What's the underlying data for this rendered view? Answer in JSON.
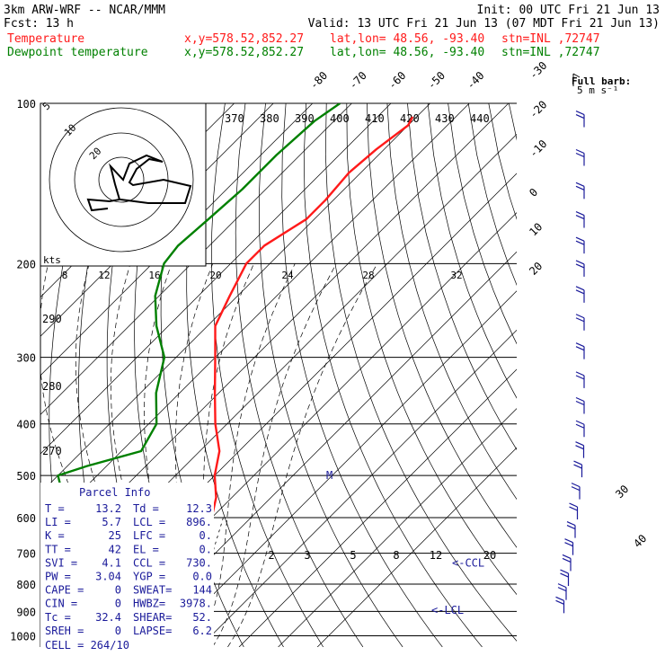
{
  "header": {
    "model": "3km ARW-WRF -- NCAR/MMM",
    "init": "Init: 00 UTC Fri 21 Jun 13",
    "fcst_label": "Fcst:",
    "fcst_value": "13 h",
    "valid": "Valid: 13 UTC Fri 21 Jun 13 (07 MDT Fri 21 Jun 13)",
    "temp_line": "Temperature",
    "dew_line": "Dewpoint temperature",
    "xy": "x,y=578.52,852.27",
    "latlon": "lat,lon= 48.56, -93.40",
    "stn": "stn=INL ,72747"
  },
  "barb_legend": {
    "title": "Full barb:",
    "value": "5 m s⁻¹"
  },
  "parcel_info": {
    "title": "Parcel Info",
    "rows": [
      [
        "T  =",
        "13.2",
        "Td =",
        "12.3"
      ],
      [
        "LI =",
        "5.7",
        "LCL =",
        "896."
      ],
      [
        "K  =",
        "25",
        "LFC =",
        "0."
      ],
      [
        "TT =",
        "42",
        "EL  =",
        "0."
      ],
      [
        "SVI =",
        "4.1",
        "CCL =",
        "730."
      ],
      [
        "PW =",
        "3.04",
        "YGP =",
        "0.0"
      ],
      [
        "CAPE =",
        "0",
        "SWEAT=",
        "144"
      ],
      [
        "CIN =",
        "0",
        "HWBZ=",
        "3978."
      ],
      [
        "Tc =",
        "32.4",
        "SHEAR=",
        "52."
      ],
      [
        "SREH =",
        "0",
        "LAPSE=",
        "6.2"
      ]
    ],
    "cell": "CELL = 264/10"
  },
  "chart_data": {
    "type": "line",
    "xlabel": "",
    "ylabel": "",
    "pressure_levels": [
      100,
      200,
      300,
      400,
      500,
      600,
      700,
      800,
      900,
      1000
    ],
    "pressure_labels": [
      "100",
      "200",
      "300",
      "400",
      "500",
      "600",
      "700",
      "800",
      "900",
      "1000"
    ],
    "grid": true,
    "isotherm_labels": [
      "-80",
      "-70",
      "-60",
      "-50",
      "-40",
      "-30",
      "-20",
      "-10",
      "0",
      "10",
      "20",
      "30",
      "40"
    ],
    "isotherm_label_values": [
      -80,
      -70,
      -60,
      -50,
      -40,
      -30,
      -20,
      -10,
      0,
      10,
      20,
      30,
      40
    ],
    "theta_labels": [
      "370",
      "380",
      "390",
      "400",
      "410",
      "420",
      "430",
      "440"
    ],
    "theta_side_labels": [
      "290",
      "280",
      "270"
    ],
    "mixing_ratio_labels": [
      "2",
      "3",
      "5",
      "8",
      "12",
      "20"
    ],
    "mixing_ratio_values": [
      2,
      3,
      5,
      8,
      12,
      20
    ],
    "hodograph": {
      "ring_labels": [
        "5",
        "10",
        "20"
      ],
      "scale_labels": [
        "kts",
        "8",
        "12",
        "16",
        "20",
        "24",
        "28",
        "32"
      ]
    },
    "annotations": [
      {
        "text": "<-CCL",
        "p": 730
      },
      {
        "text": "<-LCL",
        "p": 896
      },
      {
        "text": "M",
        "p": 500
      }
    ],
    "series": [
      {
        "name": "Temperature",
        "color": "#ff1a1a",
        "points": [
          [
            106,
            -51
          ],
          [
            110,
            -50
          ],
          [
            122,
            -52
          ],
          [
            135,
            -53
          ],
          [
            152,
            -52
          ],
          [
            165,
            -52
          ],
          [
            185,
            -56
          ],
          [
            200,
            -56
          ],
          [
            230,
            -52
          ],
          [
            262,
            -48
          ],
          [
            300,
            -40
          ],
          [
            350,
            -31
          ],
          [
            400,
            -23
          ],
          [
            450,
            -15
          ],
          [
            500,
            -10
          ],
          [
            550,
            -4
          ],
          [
            600,
            0
          ],
          [
            650,
            3
          ],
          [
            700,
            4
          ],
          [
            750,
            8
          ],
          [
            800,
            12
          ],
          [
            850,
            13
          ],
          [
            870,
            14
          ],
          [
            900,
            12
          ],
          [
            950,
            13
          ]
        ]
      },
      {
        "name": "Dewpoint temperature",
        "color": "#008000",
        "points": [
          [
            100,
            -73
          ],
          [
            108,
            -75
          ],
          [
            125,
            -76
          ],
          [
            145,
            -76
          ],
          [
            165,
            -77
          ],
          [
            185,
            -78
          ],
          [
            200,
            -77
          ],
          [
            230,
            -71
          ],
          [
            262,
            -63
          ],
          [
            300,
            -53
          ],
          [
            350,
            -46
          ],
          [
            400,
            -38
          ],
          [
            450,
            -35
          ],
          [
            480,
            -45
          ],
          [
            500,
            -50
          ],
          [
            550,
            -43
          ],
          [
            600,
            -27
          ],
          [
            650,
            -20
          ],
          [
            700,
            -12
          ],
          [
            750,
            -7
          ],
          [
            800,
            -3
          ],
          [
            850,
            1
          ],
          [
            900,
            9
          ],
          [
            950,
            10
          ]
        ]
      }
    ],
    "wind_barb_pressures": [
      110,
      130,
      150,
      170,
      190,
      210,
      235,
      265,
      300,
      340,
      380,
      420,
      460,
      500,
      550,
      600,
      650,
      700,
      750,
      800,
      850,
      900
    ]
  }
}
